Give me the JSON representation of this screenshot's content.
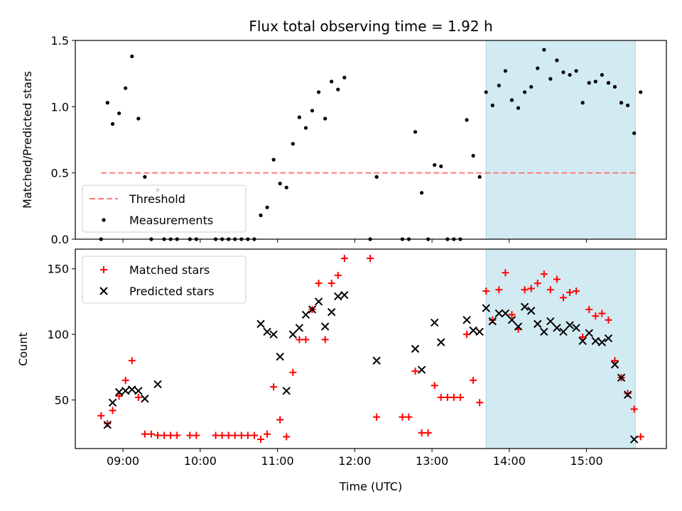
{
  "colors": {
    "threshold": "#ff7a7a",
    "measurement": "#000000",
    "matched": "#ff0000",
    "predicted": "#000000",
    "highlight": "#add8e6"
  },
  "chart_data": [
    {
      "type": "scatter",
      "title": "Flux total observing time = 1.92 h",
      "xlabel": "",
      "ylabel": "Matched/Predicted stars",
      "xlim": [
        "08:23",
        "16:02"
      ],
      "ylim": [
        0,
        1.5
      ],
      "yticks": [
        "0.0",
        "0.5",
        "1.0",
        "1.5"
      ],
      "xticks": [
        "09:00",
        "10:00",
        "11:00",
        "12:00",
        "13:00",
        "14:00",
        "15:00"
      ],
      "show_xtick_labels": false,
      "highlight_span": [
        "13:42",
        "15:38"
      ],
      "legend": {
        "position": "lower-left",
        "entries": [
          {
            "label": "Threshold",
            "marker": "dashed-line"
          },
          {
            "label": "Measurements",
            "marker": "dot"
          }
        ]
      },
      "threshold": {
        "name": "Threshold",
        "x": [
          "08:43",
          "15:38"
        ],
        "y": 0.5
      },
      "series": [
        {
          "name": "Measurements",
          "marker": "dot",
          "points": [
            [
              "08:43",
              0.0
            ],
            [
              "08:48",
              1.03
            ],
            [
              "08:52",
              0.87
            ],
            [
              "08:57",
              0.95
            ],
            [
              "09:02",
              1.14
            ],
            [
              "09:07",
              1.38
            ],
            [
              "09:12",
              0.91
            ],
            [
              "09:17",
              0.47
            ],
            [
              "09:22",
              0.0
            ],
            [
              "09:27",
              0.37
            ],
            [
              "09:32",
              0.0
            ],
            [
              "09:37",
              0.0
            ],
            [
              "09:42",
              0.0
            ],
            [
              "09:52",
              0.0
            ],
            [
              "09:57",
              0.0
            ],
            [
              "10:12",
              0.0
            ],
            [
              "10:17",
              0.0
            ],
            [
              "10:22",
              0.0
            ],
            [
              "10:27",
              0.0
            ],
            [
              "10:32",
              0.0
            ],
            [
              "10:37",
              0.0
            ],
            [
              "10:42",
              0.0
            ],
            [
              "10:47",
              0.18
            ],
            [
              "10:52",
              0.24
            ],
            [
              "10:57",
              0.6
            ],
            [
              "11:02",
              0.42
            ],
            [
              "11:07",
              0.39
            ],
            [
              "11:12",
              0.72
            ],
            [
              "11:17",
              0.92
            ],
            [
              "11:22",
              0.84
            ],
            [
              "11:27",
              0.97
            ],
            [
              "11:32",
              1.11
            ],
            [
              "11:37",
              0.91
            ],
            [
              "11:42",
              1.19
            ],
            [
              "11:47",
              1.13
            ],
            [
              "11:52",
              1.22
            ],
            [
              "12:12",
              0.0
            ],
            [
              "12:17",
              0.47
            ],
            [
              "12:37",
              0.0
            ],
            [
              "12:42",
              0.0
            ],
            [
              "12:47",
              0.81
            ],
            [
              "12:52",
              0.35
            ],
            [
              "12:57",
              0.0
            ],
            [
              "13:02",
              0.56
            ],
            [
              "13:07",
              0.55
            ],
            [
              "13:12",
              0.0
            ],
            [
              "13:17",
              0.0
            ],
            [
              "13:22",
              0.0
            ],
            [
              "13:27",
              0.9
            ],
            [
              "13:32",
              0.63
            ],
            [
              "13:37",
              0.47
            ],
            [
              "13:42",
              1.11
            ],
            [
              "13:47",
              1.01
            ],
            [
              "13:52",
              1.16
            ],
            [
              "13:57",
              1.27
            ],
            [
              "14:02",
              1.05
            ],
            [
              "14:07",
              0.99
            ],
            [
              "14:12",
              1.11
            ],
            [
              "14:17",
              1.15
            ],
            [
              "14:22",
              1.29
            ],
            [
              "14:27",
              1.43
            ],
            [
              "14:32",
              1.21
            ],
            [
              "14:37",
              1.35
            ],
            [
              "14:42",
              1.26
            ],
            [
              "14:47",
              1.24
            ],
            [
              "14:52",
              1.27
            ],
            [
              "14:57",
              1.03
            ],
            [
              "15:02",
              1.18
            ],
            [
              "15:07",
              1.19
            ],
            [
              "15:12",
              1.24
            ],
            [
              "15:17",
              1.18
            ],
            [
              "15:22",
              1.15
            ],
            [
              "15:27",
              1.03
            ],
            [
              "15:32",
              1.01
            ],
            [
              "15:37",
              0.8
            ],
            [
              "15:42",
              1.11
            ]
          ]
        }
      ]
    },
    {
      "type": "scatter",
      "title": "",
      "xlabel": "Time (UTC)",
      "ylabel": "Count",
      "xlim": [
        "08:23",
        "16:02"
      ],
      "ylim": [
        13,
        165
      ],
      "yticks": [
        "50",
        "100",
        "150"
      ],
      "xticks": [
        "09:00",
        "10:00",
        "11:00",
        "12:00",
        "13:00",
        "14:00",
        "15:00"
      ],
      "show_xtick_labels": true,
      "highlight_span": [
        "13:42",
        "15:38"
      ],
      "legend": {
        "position": "upper-left",
        "entries": [
          {
            "label": "Matched stars",
            "marker": "plus"
          },
          {
            "label": "Predicted stars",
            "marker": "cross"
          }
        ]
      },
      "series": [
        {
          "name": "Matched stars",
          "marker": "plus",
          "points": [
            [
              "08:43",
              38
            ],
            [
              "08:48",
              32
            ],
            [
              "08:52",
              42
            ],
            [
              "08:57",
              53
            ],
            [
              "09:02",
              65
            ],
            [
              "09:07",
              80
            ],
            [
              "09:12",
              52
            ],
            [
              "09:17",
              24
            ],
            [
              "09:22",
              24
            ],
            [
              "09:27",
              23
            ],
            [
              "09:32",
              23
            ],
            [
              "09:37",
              23
            ],
            [
              "09:42",
              23
            ],
            [
              "09:52",
              23
            ],
            [
              "09:57",
              23
            ],
            [
              "10:12",
              23
            ],
            [
              "10:17",
              23
            ],
            [
              "10:22",
              23
            ],
            [
              "10:27",
              23
            ],
            [
              "10:32",
              23
            ],
            [
              "10:37",
              23
            ],
            [
              "10:42",
              23
            ],
            [
              "10:47",
              20
            ],
            [
              "10:52",
              24
            ],
            [
              "10:57",
              60
            ],
            [
              "11:02",
              35
            ],
            [
              "11:07",
              22
            ],
            [
              "11:12",
              71
            ],
            [
              "11:17",
              96
            ],
            [
              "11:22",
              96
            ],
            [
              "11:27",
              119
            ],
            [
              "11:32",
              139
            ],
            [
              "11:37",
              96
            ],
            [
              "11:42",
              139
            ],
            [
              "11:47",
              145
            ],
            [
              "11:52",
              158
            ],
            [
              "12:12",
              158
            ],
            [
              "12:17",
              37
            ],
            [
              "12:37",
              37
            ],
            [
              "12:42",
              37
            ],
            [
              "12:47",
              72
            ],
            [
              "12:52",
              25
            ],
            [
              "12:57",
              25
            ],
            [
              "13:02",
              61
            ],
            [
              "13:07",
              52
            ],
            [
              "13:12",
              52
            ],
            [
              "13:17",
              52
            ],
            [
              "13:22",
              52
            ],
            [
              "13:27",
              100
            ],
            [
              "13:32",
              65
            ],
            [
              "13:37",
              48
            ],
            [
              "13:42",
              133
            ],
            [
              "13:47",
              111
            ],
            [
              "13:52",
              134
            ],
            [
              "13:57",
              147
            ],
            [
              "14:02",
              115
            ],
            [
              "14:07",
              104
            ],
            [
              "14:12",
              134
            ],
            [
              "14:17",
              135
            ],
            [
              "14:22",
              139
            ],
            [
              "14:27",
              146
            ],
            [
              "14:32",
              134
            ],
            [
              "14:37",
              142
            ],
            [
              "14:42",
              128
            ],
            [
              "14:47",
              132
            ],
            [
              "14:52",
              133
            ],
            [
              "14:57",
              98
            ],
            [
              "15:02",
              119
            ],
            [
              "15:07",
              114
            ],
            [
              "15:12",
              116
            ],
            [
              "15:17",
              111
            ],
            [
              "15:22",
              80
            ],
            [
              "15:27",
              67
            ],
            [
              "15:32",
              55
            ],
            [
              "15:37",
              43
            ],
            [
              "15:42",
              22
            ]
          ]
        },
        {
          "name": "Predicted stars",
          "marker": "cross",
          "points": [
            [
              "08:48",
              31
            ],
            [
              "08:52",
              48
            ],
            [
              "08:57",
              56
            ],
            [
              "09:02",
              57
            ],
            [
              "09:07",
              58
            ],
            [
              "09:12",
              57
            ],
            [
              "09:17",
              51
            ],
            [
              "09:27",
              62
            ],
            [
              "10:47",
              108
            ],
            [
              "10:52",
              102
            ],
            [
              "10:57",
              100
            ],
            [
              "11:02",
              83
            ],
            [
              "11:07",
              57
            ],
            [
              "11:12",
              100
            ],
            [
              "11:17",
              105
            ],
            [
              "11:22",
              115
            ],
            [
              "11:27",
              119
            ],
            [
              "11:32",
              125
            ],
            [
              "11:37",
              106
            ],
            [
              "11:42",
              117
            ],
            [
              "11:47",
              129
            ],
            [
              "11:52",
              130
            ],
            [
              "12:17",
              80
            ],
            [
              "12:47",
              89
            ],
            [
              "12:52",
              73
            ],
            [
              "13:02",
              109
            ],
            [
              "13:07",
              94
            ],
            [
              "13:27",
              111
            ],
            [
              "13:32",
              103
            ],
            [
              "13:37",
              102
            ],
            [
              "13:42",
              120
            ],
            [
              "13:47",
              110
            ],
            [
              "13:52",
              116
            ],
            [
              "13:57",
              116
            ],
            [
              "14:02",
              111
            ],
            [
              "14:07",
              106
            ],
            [
              "14:12",
              121
            ],
            [
              "14:17",
              118
            ],
            [
              "14:22",
              108
            ],
            [
              "14:27",
              102
            ],
            [
              "14:32",
              110
            ],
            [
              "14:37",
              105
            ],
            [
              "14:42",
              102
            ],
            [
              "14:47",
              107
            ],
            [
              "14:52",
              105
            ],
            [
              "14:57",
              95
            ],
            [
              "15:02",
              101
            ],
            [
              "15:07",
              95
            ],
            [
              "15:12",
              94
            ],
            [
              "15:17",
              97
            ],
            [
              "15:22",
              77
            ],
            [
              "15:27",
              67
            ],
            [
              "15:32",
              54
            ],
            [
              "15:37",
              20
            ]
          ]
        }
      ]
    }
  ]
}
